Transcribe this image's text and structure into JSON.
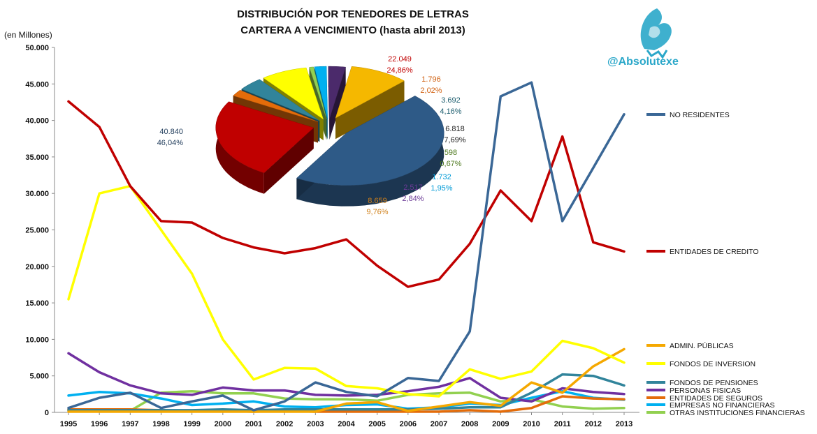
{
  "chart_data": {
    "type": "line",
    "title": [
      "DISTRIBUCIÓN POR TENEDORES DE LETRAS",
      "CARTERA A VENCIMIENTO (hasta abril 2013)"
    ],
    "ylabel": "(en Millones)",
    "ylim": [
      0,
      50000
    ],
    "yticks": [
      "0",
      "5.000",
      "10.000",
      "15.000",
      "20.000",
      "25.000",
      "30.000",
      "35.000",
      "40.000",
      "45.000",
      "50.000"
    ],
    "categories": [
      "1995",
      "1996",
      "1997",
      "1998",
      "1999",
      "2000",
      "2001",
      "2002",
      "2003",
      "2004",
      "2005",
      "2006",
      "2007",
      "2008",
      "2009",
      "2010",
      "2011",
      "2012",
      "2013"
    ],
    "grid": false,
    "legend_position": "right",
    "series": [
      {
        "name": "NO RESIDENTES",
        "color": "#3a6796",
        "values": [
          600,
          2000,
          2700,
          600,
          1500,
          2300,
          300,
          1500,
          4100,
          2800,
          2200,
          4700,
          4300,
          11100,
          43300,
          45200,
          26200,
          33500,
          40840
        ]
      },
      {
        "name": "ENTIDADES  DE CREDITO",
        "color": "#c00000",
        "values": [
          42600,
          39100,
          31000,
          26200,
          26000,
          23900,
          22600,
          21800,
          22500,
          23700,
          20100,
          17200,
          18200,
          23100,
          30400,
          26200,
          37800,
          23300,
          22049
        ]
      },
      {
        "name": "ADMIN. PÚBLICAS",
        "color": "#f5a800",
        "values": [
          100,
          100,
          100,
          100,
          100,
          100,
          100,
          100,
          100,
          1200,
          1400,
          200,
          800,
          1400,
          900,
          4100,
          2700,
          6300,
          8659
        ]
      },
      {
        "name": "FONDOS DE INVERSION",
        "color": "#ffff00",
        "values": [
          15500,
          30000,
          31000,
          25000,
          19000,
          10000,
          4500,
          6100,
          6000,
          3600,
          3300,
          2500,
          2200,
          5900,
          4600,
          5600,
          9800,
          8800,
          6818
        ]
      },
      {
        "name": "FONDOS DE PENSIONES",
        "color": "#31849b",
        "values": [
          300,
          300,
          300,
          300,
          300,
          400,
          300,
          400,
          400,
          400,
          400,
          400,
          500,
          700,
          700,
          2700,
          5200,
          5000,
          3692
        ]
      },
      {
        "name": "PERSONAS FISICAS",
        "color": "#7030a0",
        "values": [
          8100,
          5500,
          3700,
          2600,
          2400,
          3400,
          3000,
          3000,
          2400,
          2300,
          2400,
          2900,
          3500,
          4700,
          2000,
          1500,
          3300,
          2800,
          2517
        ]
      },
      {
        "name": "ENTIDADES  DE SEGUROS",
        "color": "#e46c0a",
        "values": [
          400,
          400,
          400,
          300,
          200,
          200,
          100,
          200,
          100,
          100,
          100,
          100,
          100,
          300,
          100,
          600,
          2200,
          1900,
          1796
        ]
      },
      {
        "name": "EMPRESAS  NO FINANCIERAS",
        "color": "#00b0f0",
        "values": [
          2300,
          2800,
          2600,
          1900,
          1000,
          1200,
          1500,
          800,
          700,
          1000,
          1100,
          500,
          700,
          1200,
          1000,
          2000,
          2900,
          2000,
          1732
        ]
      },
      {
        "name": "OTRAS INSTITUCIONES  FINANCIERAS",
        "color": "#92d050",
        "values": [
          300,
          300,
          200,
          2700,
          2900,
          2600,
          2600,
          1900,
          1800,
          1800,
          1600,
          2400,
          2600,
          2700,
          1500,
          1800,
          800,
          500,
          598
        ]
      }
    ],
    "pie": {
      "type": "pie",
      "slices": [
        {
          "name": "NO RESIDENTES",
          "value_label": "40.840",
          "pct_label": "46,04%",
          "value": 40840,
          "color": "#2e5a87",
          "label_color": "#1f3b5a"
        },
        {
          "name": "ENTIDADES  DE CREDITO",
          "value_label": "22.049",
          "pct_label": "24,86%",
          "value": 22049,
          "color": "#c00000",
          "label_color": "#c00000"
        },
        {
          "name": "ENTIDADES  DE SEGUROS",
          "value_label": "1.796",
          "pct_label": "2,02%",
          "value": 1796,
          "color": "#e46c0a",
          "label_color": "#d06010"
        },
        {
          "name": "FONDOS DE PENSIONES",
          "value_label": "3.692",
          "pct_label": "4,16%",
          "value": 3692,
          "color": "#31849b",
          "label_color": "#1f5f70"
        },
        {
          "name": "FONDOS DE INVERSION",
          "value_label": "6.818",
          "pct_label": "7,69%",
          "value": 6818,
          "color": "#ffff00",
          "label_color": "#222222"
        },
        {
          "name": "OTRAS INSTITUCIONES  FINANCIERAS",
          "value_label": "598",
          "pct_label": "0,67%",
          "value": 598,
          "color": "#92d050",
          "label_color": "#4f7a20"
        },
        {
          "name": "EMPRESAS  NO FINANCIERAS",
          "value_label": "1.732",
          "pct_label": "1,95%",
          "value": 1732,
          "color": "#00b0f0",
          "label_color": "#009ad6"
        },
        {
          "name": "PERSONAS FISICAS",
          "value_label": "2.517",
          "pct_label": "2,84%",
          "value": 2517,
          "color": "#4b2a6b",
          "label_color": "#6b3a96"
        },
        {
          "name": "ADMIN. PÚBLICAS",
          "value_label": "8.659",
          "pct_label": "9,76%",
          "value": 8659,
          "color": "#f5b800",
          "label_color": "#d0801a"
        }
      ]
    }
  },
  "watermark": {
    "brand": "@Absolutexe"
  }
}
